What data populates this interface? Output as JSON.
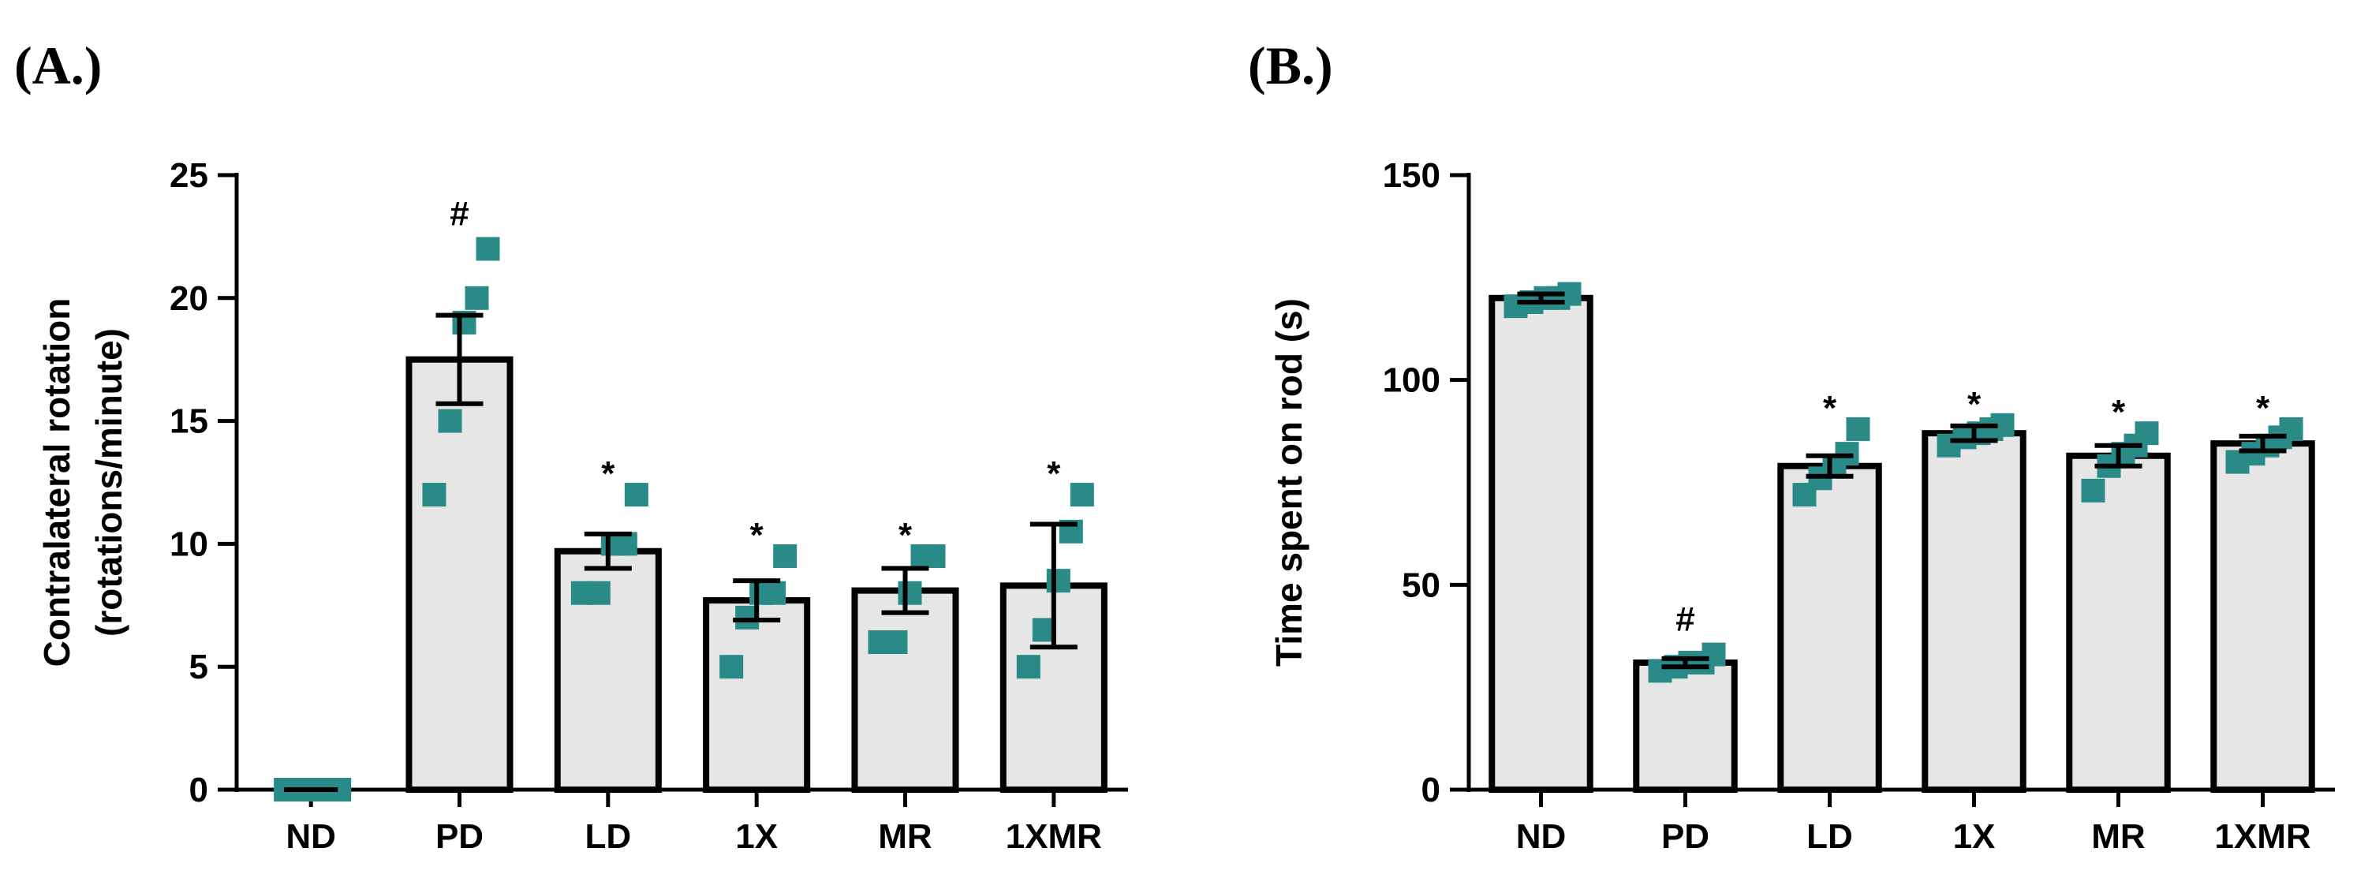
{
  "chart_data": [
    {
      "panel_label": "(A.)",
      "type": "bar",
      "categories": [
        "ND",
        "PD",
        "LD",
        "1X",
        "MR",
        "1XMR"
      ],
      "values": [
        0,
        17.5,
        9.7,
        7.7,
        8.1,
        8.3
      ],
      "errors": [
        0,
        1.8,
        0.7,
        0.8,
        0.9,
        2.5
      ],
      "points": [
        [
          0,
          0,
          0,
          0,
          0
        ],
        [
          12,
          15,
          19,
          20,
          22
        ],
        [
          8,
          8,
          10,
          10,
          12
        ],
        [
          5,
          7,
          8,
          8,
          9.5
        ],
        [
          6,
          6,
          8,
          9.5,
          9.5
        ],
        [
          5,
          6.5,
          8.5,
          10.5,
          12
        ]
      ],
      "annotations": [
        "",
        "#",
        "*",
        "*",
        "*",
        "*"
      ],
      "ylabel": [
        "Contralateral rotation",
        "(rotations/minute)"
      ],
      "xlabel": "",
      "ylim": [
        0,
        25
      ],
      "yticks": [
        0,
        5,
        10,
        15,
        20,
        25
      ],
      "ytick_labels": [
        "0",
        "5",
        "10",
        "15",
        "20",
        "25"
      ]
    },
    {
      "panel_label": "(B.)",
      "type": "bar",
      "categories": [
        "ND",
        "PD",
        "LD",
        "1X",
        "MR",
        "1XMR"
      ],
      "values": [
        120,
        31,
        79,
        87,
        81.5,
        84.5
      ],
      "errors": [
        1,
        1,
        2.5,
        1.8,
        2.5,
        1.8
      ],
      "points": [
        [
          118,
          119,
          120,
          120,
          121
        ],
        [
          29,
          30,
          31,
          31,
          33
        ],
        [
          72,
          76,
          79,
          82,
          88
        ],
        [
          84,
          86,
          87,
          88,
          89
        ],
        [
          73,
          79,
          82,
          84,
          87
        ],
        [
          80,
          82,
          84,
          86,
          88
        ]
      ],
      "annotations": [
        "",
        "#",
        "*",
        "*",
        "*",
        "*"
      ],
      "ylabel": [
        "Time spent on rod (s)"
      ],
      "xlabel": "",
      "ylim": [
        0,
        150
      ],
      "yticks": [
        0,
        50,
        100,
        150
      ],
      "ytick_labels": [
        "0",
        "50",
        "100",
        "150"
      ]
    }
  ],
  "colors": {
    "bar_fill": "#e6e6e6",
    "bar_stroke": "#000000",
    "point": "#2a8a88",
    "axis": "#000000"
  }
}
